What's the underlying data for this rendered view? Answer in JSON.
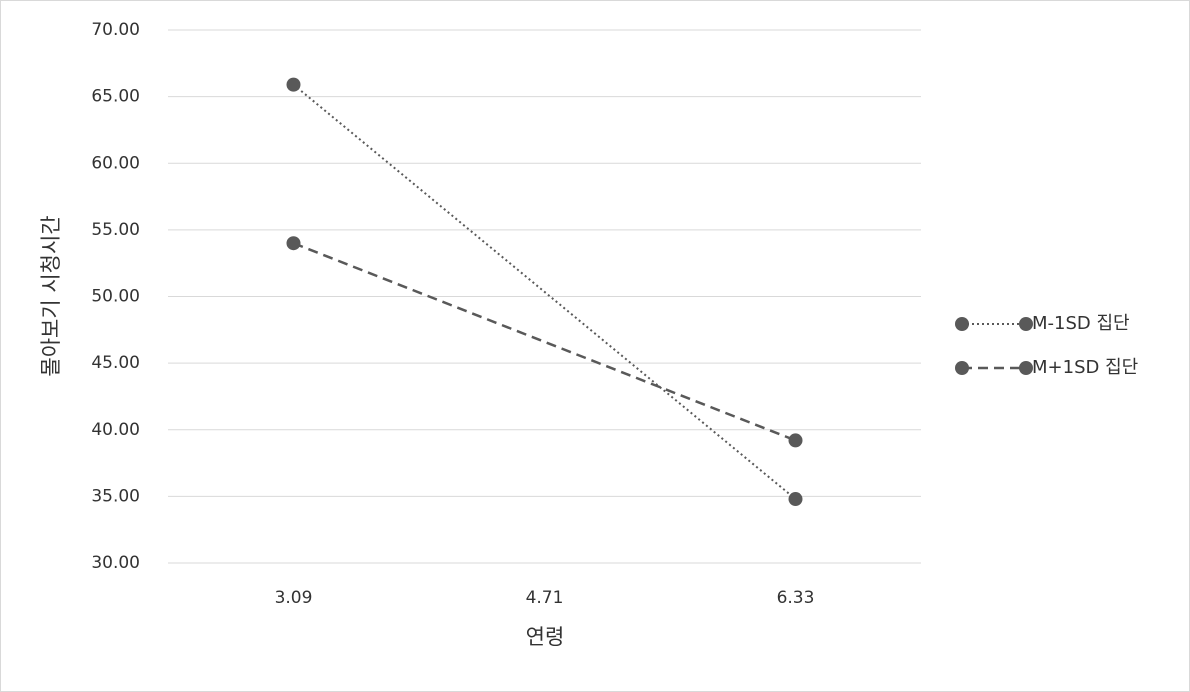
{
  "chart_data": {
    "type": "line",
    "y_label": "몰아보기 시청시간",
    "x_label": "연령",
    "x": [
      3.09,
      6.33
    ],
    "xlim": [
      2.28,
      7.14
    ],
    "xticks": [
      3.09,
      4.71,
      6.33
    ],
    "ylim": [
      30,
      70
    ],
    "yticks": [
      {
        "value": 30,
        "label": "30.00"
      },
      {
        "value": 35,
        "label": "35.00"
      },
      {
        "value": 40,
        "label": "40.00"
      },
      {
        "value": 45,
        "label": "45.00"
      },
      {
        "value": 50,
        "label": "50.00"
      },
      {
        "value": 55,
        "label": "55.00"
      },
      {
        "value": 60,
        "label": "60.00"
      },
      {
        "value": 65,
        "label": "65.00"
      },
      {
        "value": 70,
        "label": "70.00"
      }
    ],
    "grid": true,
    "legend": "right",
    "series": [
      {
        "name": "M-1SD 집단",
        "color": "#595959",
        "line_style": "dotted",
        "values": [
          65.9,
          34.8
        ]
      },
      {
        "name": "M+1SD 집단",
        "color": "#595959",
        "line_style": "dashed",
        "values": [
          54.0,
          39.2
        ]
      }
    ]
  }
}
